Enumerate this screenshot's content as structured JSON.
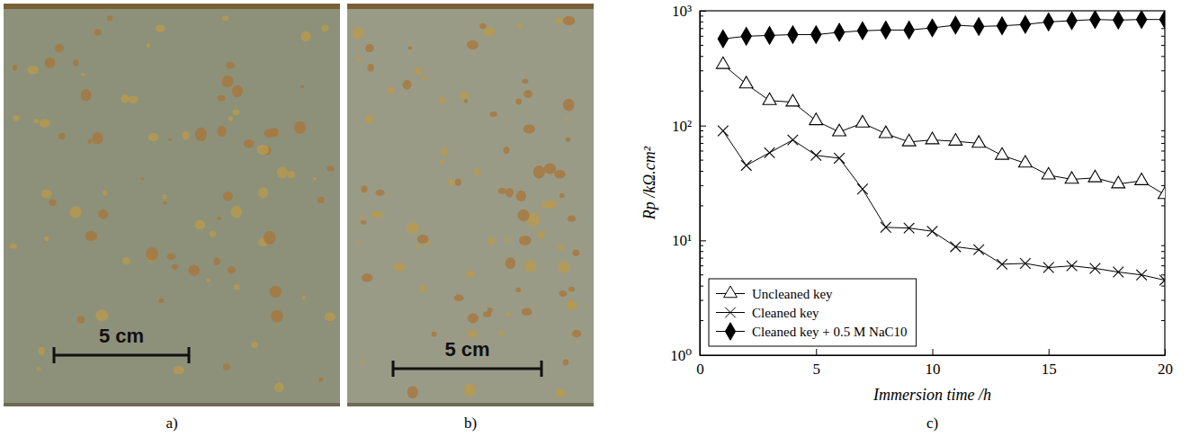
{
  "photos": [
    {
      "label": "a)",
      "scale_bar": "5 cm"
    },
    {
      "label": "b)",
      "scale_bar": "5 cm"
    }
  ],
  "chart_label": "c)",
  "chart_data": {
    "type": "line",
    "x_label": "Immersion time /h",
    "y_label": "Rp /kΩ.cm²",
    "log": "y",
    "xlim": [
      0,
      20
    ],
    "xticks": [
      0,
      5,
      10,
      15,
      20
    ],
    "ylim": [
      1,
      1000
    ],
    "yticks": [
      {
        "value": 1,
        "label": "10⁰"
      },
      {
        "value": 10,
        "label": "10¹"
      },
      {
        "value": 100,
        "label": "10²"
      },
      {
        "value": 1000,
        "label": "10³"
      }
    ],
    "legend": "lower left",
    "x": [
      1,
      2,
      3,
      4,
      5,
      6,
      7,
      8,
      9,
      10,
      11,
      12,
      13,
      14,
      15,
      16,
      17,
      18,
      19,
      20
    ],
    "series": [
      {
        "name": "Uncleaned key",
        "color": "#000000",
        "marker": "triangle-open",
        "line_style": "solid",
        "values": [
          340,
          230,
          165,
          160,
          110,
          88,
          105,
          85,
          72,
          75,
          73,
          70,
          55,
          47,
          37,
          34,
          35,
          31,
          33,
          25
        ]
      },
      {
        "name": "Cleaned key",
        "color": "#000000",
        "marker": "x",
        "line_style": "solid",
        "values": [
          90,
          45,
          58,
          75,
          55,
          52,
          28,
          13,
          12.8,
          12,
          8.8,
          8.3,
          6.2,
          6.3,
          5.8,
          6,
          5.7,
          5.3,
          5,
          4.5
        ]
      },
      {
        "name": "Cleaned key + 0.5 M NaC10",
        "color": "#000000",
        "marker": "diamond",
        "line_style": "solid",
        "values": [
          570,
          600,
          610,
          620,
          620,
          650,
          670,
          680,
          680,
          710,
          750,
          730,
          740,
          760,
          800,
          820,
          840,
          830,
          840,
          840
        ]
      }
    ]
  }
}
